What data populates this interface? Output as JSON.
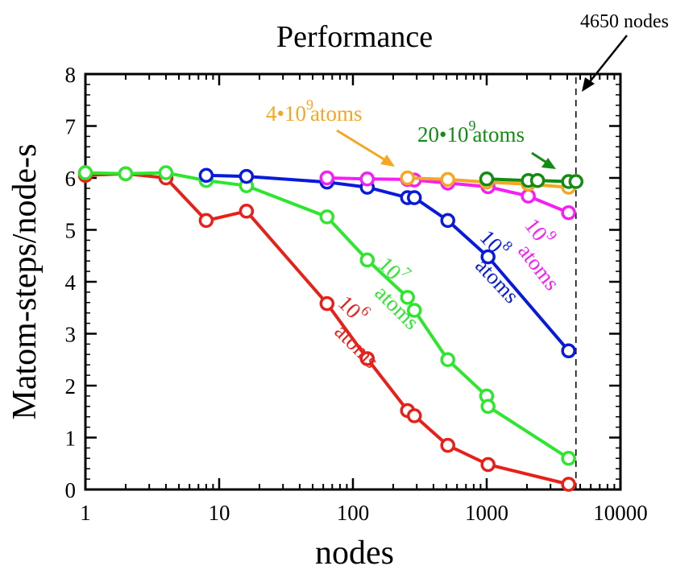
{
  "chart_data": {
    "type": "line",
    "title": "Performance",
    "xlabel": "nodes",
    "ylabel": "Matom-steps/node-s",
    "xscale": "log",
    "xlim": [
      1,
      10000
    ],
    "ylim": [
      0,
      8
    ],
    "xticks": [
      {
        "value": 1,
        "label": "1"
      },
      {
        "value": 10,
        "label": "10"
      },
      {
        "value": 100,
        "label": "100"
      },
      {
        "value": 1000,
        "label": "1000"
      },
      {
        "value": 10000,
        "label": "10000"
      }
    ],
    "yticks": [
      {
        "value": 0,
        "label": "0"
      },
      {
        "value": 1,
        "label": "1"
      },
      {
        "value": 2,
        "label": "2"
      },
      {
        "value": 3,
        "label": "3"
      },
      {
        "value": 4,
        "label": "4"
      },
      {
        "value": 5,
        "label": "5"
      },
      {
        "value": 6,
        "label": "6"
      },
      {
        "value": 7,
        "label": "7"
      },
      {
        "value": 8,
        "label": "8"
      }
    ],
    "grid": false,
    "legend": "none",
    "reference_line": {
      "x": 4650,
      "style": "dashed",
      "label": "4650 nodes"
    },
    "series": [
      {
        "key": "red",
        "label_main": "10",
        "label_exp": "6",
        "label_unit": "atoms",
        "color": "#e8201a",
        "x": [
          1,
          2,
          4,
          8,
          16,
          64,
          128,
          256,
          288,
          512,
          1024,
          4096
        ],
        "y": [
          6.05,
          6.08,
          6.0,
          5.18,
          5.36,
          3.58,
          2.52,
          1.52,
          1.42,
          0.85,
          0.48,
          0.1
        ]
      },
      {
        "key": "green",
        "label_main": "10",
        "label_exp": "7",
        "label_unit": "atoms",
        "color": "#2ee62e",
        "x": [
          1,
          2,
          4,
          8,
          16,
          64,
          128,
          256,
          288,
          512,
          1000,
          1024,
          4096
        ],
        "y": [
          6.1,
          6.08,
          6.1,
          5.95,
          5.85,
          5.25,
          4.42,
          3.7,
          3.45,
          2.5,
          1.8,
          1.6,
          0.6
        ]
      },
      {
        "key": "blue",
        "label_main": "10",
        "label_exp": "8",
        "label_unit": "atoms",
        "color": "#0a1adb",
        "x": [
          8,
          16,
          64,
          128,
          256,
          288,
          512,
          1024,
          4096
        ],
        "y": [
          6.05,
          6.03,
          5.92,
          5.82,
          5.62,
          5.62,
          5.18,
          4.48,
          2.67
        ]
      },
      {
        "key": "magenta",
        "label_main": "10",
        "label_exp": "9",
        "label_unit": "atoms",
        "color": "#f51ef5",
        "x": [
          64,
          128,
          256,
          288,
          512,
          1024,
          2048,
          4096
        ],
        "y": [
          6.0,
          5.98,
          5.97,
          5.96,
          5.9,
          5.83,
          5.65,
          5.33
        ]
      },
      {
        "key": "orange",
        "label_main": "4•10",
        "label_exp": "9",
        "label_unit": "atoms",
        "color": "#f5a623",
        "x": [
          256,
          512,
          1000,
          2048,
          4096
        ],
        "y": [
          6.0,
          5.97,
          5.92,
          5.88,
          5.82
        ]
      },
      {
        "key": "darkgreen",
        "label_main": "20•10",
        "label_exp": "9",
        "label_unit": "atoms",
        "color": "#138c13",
        "x": [
          1000,
          2048,
          2400,
          4096,
          4650
        ],
        "y": [
          5.98,
          5.95,
          5.95,
          5.93,
          5.93
        ]
      }
    ]
  }
}
